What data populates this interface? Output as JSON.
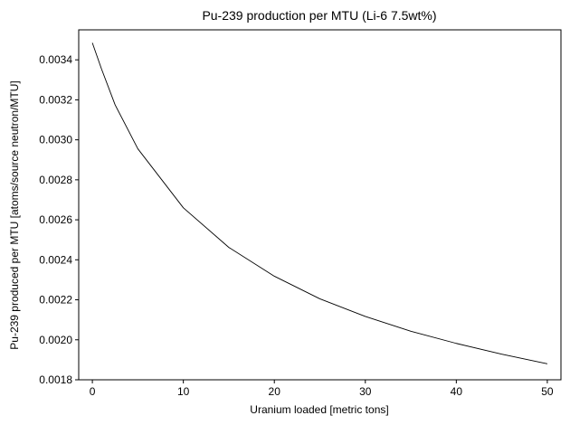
{
  "chart_data": {
    "type": "line",
    "title": "Pu-239 production per MTU (Li-6 7.5wt%)",
    "xlabel": "Uranium loaded [metric tons]",
    "ylabel": "Pu-239 produced per MTU [atoms/source neutron/MTU]",
    "xlim": [
      -1.5,
      51.5
    ],
    "ylim": [
      0.0018,
      0.00355
    ],
    "xticks": [
      0,
      10,
      20,
      30,
      40,
      50
    ],
    "xtick_labels": [
      "0",
      "10",
      "20",
      "30",
      "40",
      "50"
    ],
    "yticks": [
      0.0018,
      0.002,
      0.0022,
      0.0024,
      0.0026,
      0.0028,
      0.003,
      0.0032,
      0.0034
    ],
    "ytick_labels": [
      "0.0018",
      "0.0020",
      "0.0022",
      "0.0024",
      "0.0026",
      "0.0028",
      "0.0030",
      "0.0032",
      "0.0034"
    ],
    "grid": false,
    "series": [
      {
        "color": "#000000",
        "x": [
          0,
          1,
          2.5,
          5,
          10,
          15,
          20,
          25,
          30,
          35,
          40,
          45,
          50
        ],
        "y": [
          0.003485,
          0.003355,
          0.003175,
          0.002955,
          0.00266,
          0.002462,
          0.002318,
          0.002205,
          0.002117,
          0.002043,
          0.001982,
          0.001928,
          0.00188
        ]
      }
    ]
  }
}
